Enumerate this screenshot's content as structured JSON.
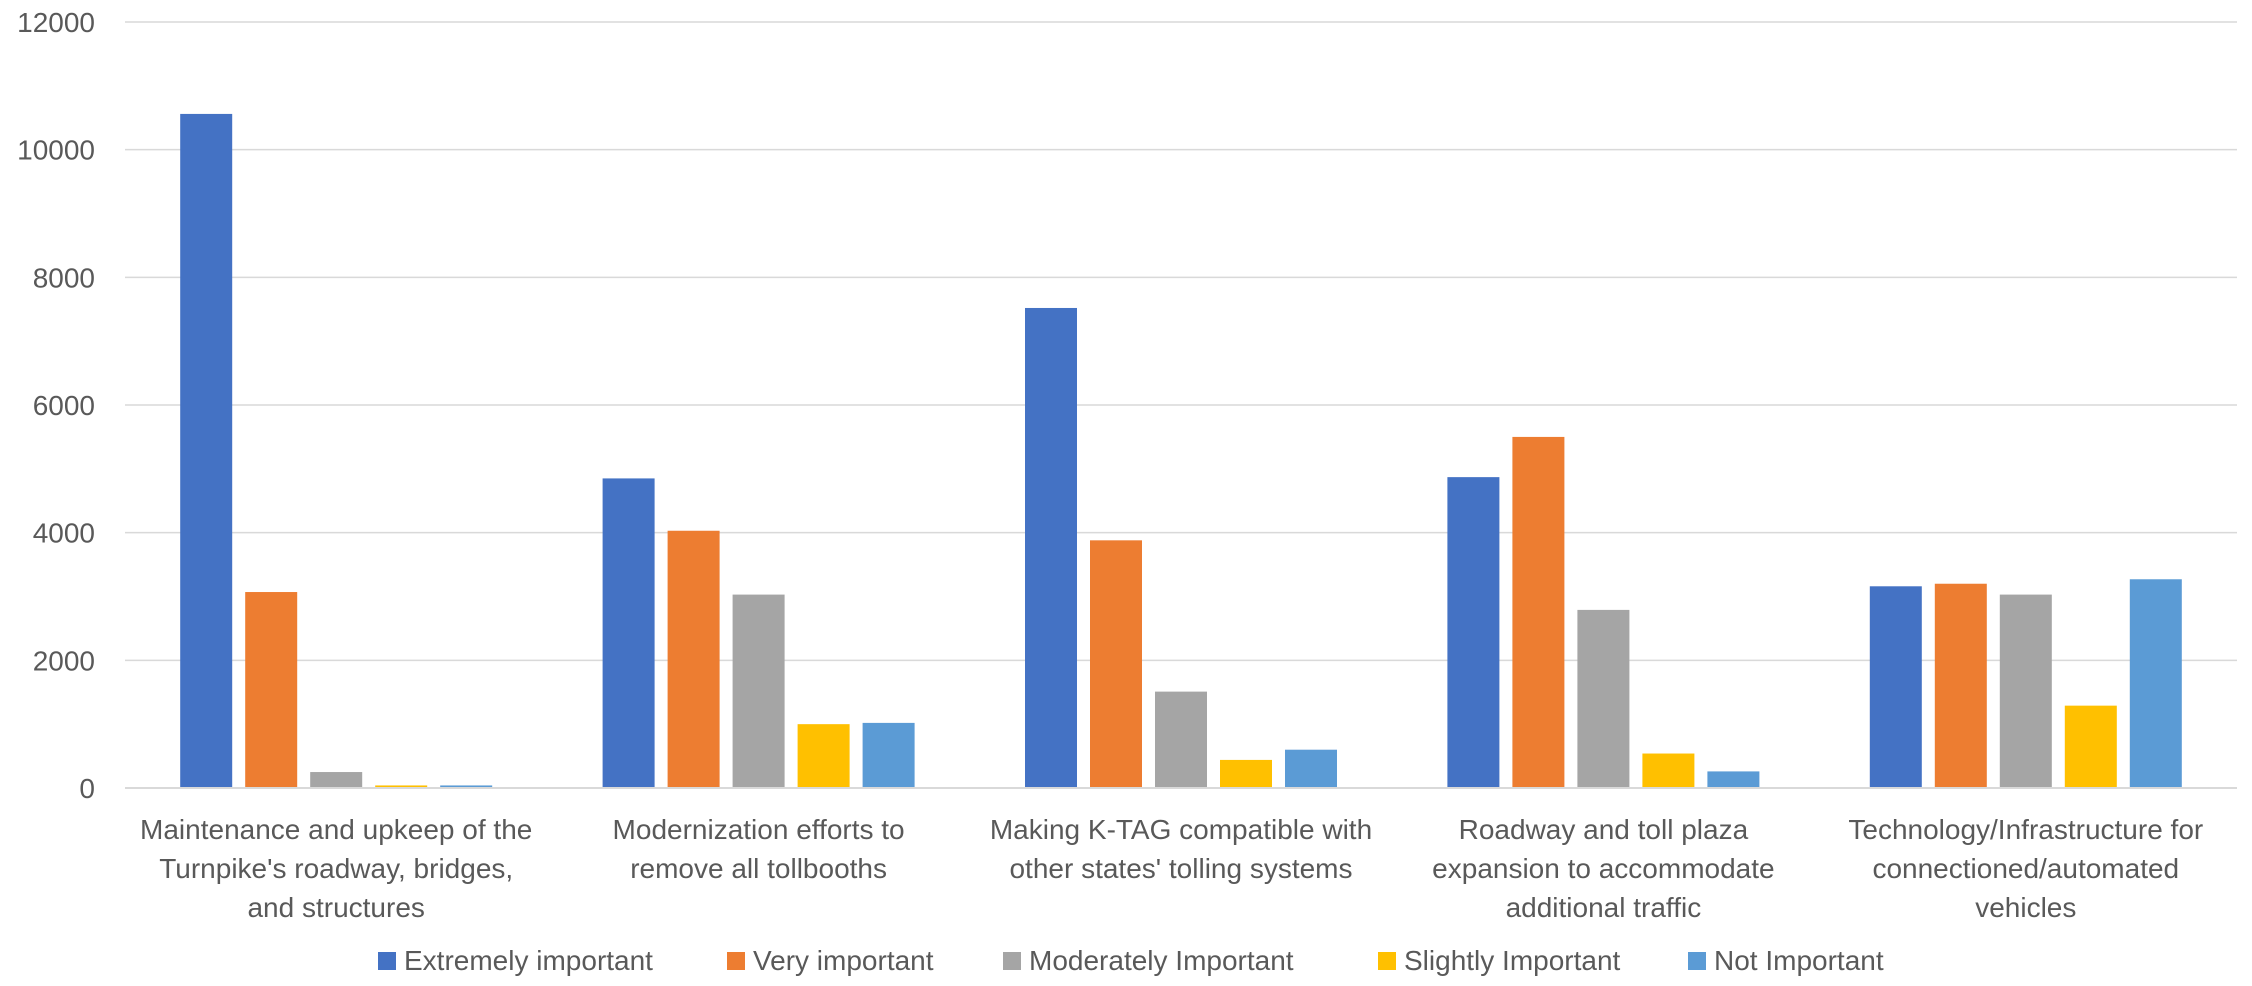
{
  "chart_data": {
    "type": "bar",
    "title": "",
    "xlabel": "",
    "ylabel": "",
    "ylim": [
      0,
      12000
    ],
    "yticks": [
      0,
      2000,
      4000,
      6000,
      8000,
      10000,
      12000
    ],
    "grid": true,
    "legend_position": "bottom",
    "categories": [
      [
        "Maintenance and upkeep of the",
        "Turnpike's roadway, bridges,",
        "and structures"
      ],
      [
        "Modernization efforts to",
        "remove all tollbooths"
      ],
      [
        "Making K-TAG compatible with",
        "other states' tolling systems"
      ],
      [
        "Roadway and toll plaza",
        "expansion to accommodate",
        "additional traffic"
      ],
      [
        "Technology/Infrastructure for",
        "connectioned/automated",
        "vehicles"
      ]
    ],
    "series": [
      {
        "name": "Extremely important",
        "color": "#4472C4",
        "values": [
          10560,
          4850,
          7520,
          4870,
          3160
        ]
      },
      {
        "name": "Very important",
        "color": "#ED7D31",
        "values": [
          3070,
          4030,
          3880,
          5500,
          3200
        ]
      },
      {
        "name": "Moderately Important",
        "color": "#A5A5A5",
        "values": [
          250,
          3030,
          1510,
          2790,
          3030
        ]
      },
      {
        "name": "Slightly Important",
        "color": "#FFC000",
        "values": [
          40,
          1000,
          440,
          540,
          1290
        ]
      },
      {
        "name": "Not Important",
        "color": "#5B9BD5",
        "values": [
          40,
          1020,
          600,
          260,
          3270
        ]
      }
    ]
  }
}
